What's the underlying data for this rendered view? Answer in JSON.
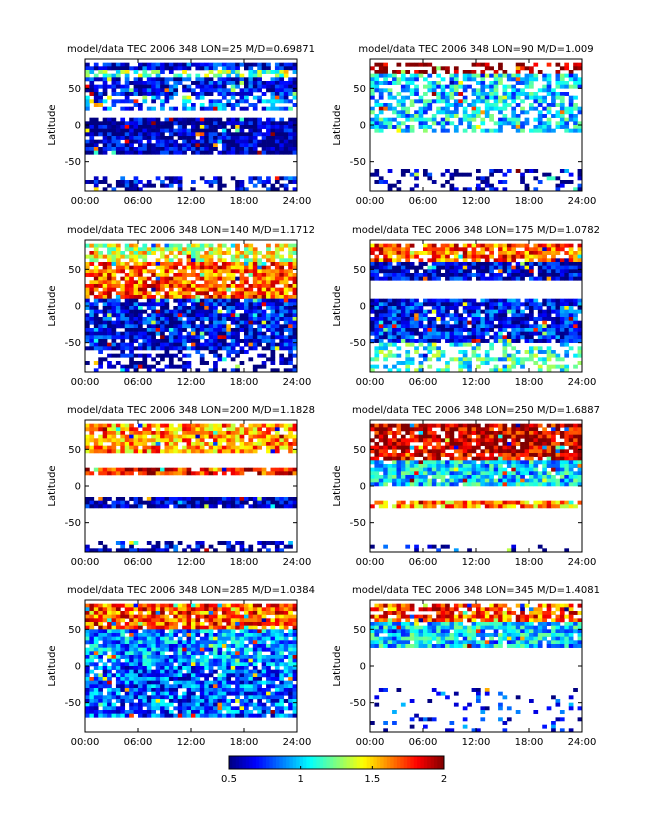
{
  "chart_data": {
    "type": "heatmap",
    "common": {
      "ylabel": "Latitude",
      "x_ticks": [
        "00:00",
        "06:00",
        "12:00",
        "18:00",
        "24:00"
      ],
      "y_ticks": [
        "50",
        "0",
        "-50"
      ],
      "xlim_hours": [
        0,
        24
      ],
      "ylim_deg": [
        -90,
        90
      ]
    },
    "colorbar": {
      "ticks": [
        "0.5",
        "1",
        "1.5",
        "2"
      ],
      "range": [
        0.5,
        2
      ],
      "colormap": "jet"
    },
    "panels": [
      {
        "title": "model/data TEC 2006 348 LON=25 M/D=0.69871",
        "bands": [
          {
            "lat": [
              40,
              85
            ],
            "v": 0.65,
            "d": 0.85
          },
          {
            "lat": [
              65,
              75
            ],
            "v": 1.2,
            "d": 0.6
          },
          {
            "lat": [
              20,
              40
            ],
            "v": 0.8,
            "d": 0.55
          },
          {
            "lat": [
              -40,
              10
            ],
            "v": 0.55,
            "d": 0.93
          },
          {
            "lat": [
              -90,
              -70
            ],
            "v": 0.6,
            "d": 0.45
          }
        ]
      },
      {
        "title": "model/data TEC 2006 348 LON=90 M/D=1.009",
        "bands": [
          {
            "lat": [
              70,
              85
            ],
            "v": 2.0,
            "d": 0.5
          },
          {
            "lat": [
              -10,
              70
            ],
            "v": 1.0,
            "d": 0.65
          },
          {
            "lat": [
              -90,
              -60
            ],
            "v": 0.55,
            "d": 0.35
          }
        ]
      },
      {
        "title": "model/data TEC 2006 348 LON=140 M/D=1.1712",
        "bands": [
          {
            "lat": [
              60,
              85
            ],
            "v": 1.4,
            "d": 0.7
          },
          {
            "lat": [
              10,
              60
            ],
            "v": 1.7,
            "d": 0.85
          },
          {
            "lat": [
              -60,
              10
            ],
            "v": 0.65,
            "d": 0.9
          },
          {
            "lat": [
              -90,
              -60
            ],
            "v": 0.55,
            "d": 0.4
          }
        ]
      },
      {
        "title": "model/data TEC 2006 348 LON=175 M/D=1.0782",
        "bands": [
          {
            "lat": [
              60,
              85
            ],
            "v": 1.7,
            "d": 0.85
          },
          {
            "lat": [
              35,
              60
            ],
            "v": 0.6,
            "d": 0.9
          },
          {
            "lat": [
              -50,
              10
            ],
            "v": 0.7,
            "d": 0.92
          },
          {
            "lat": [
              -90,
              -50
            ],
            "v": 1.1,
            "d": 0.45
          }
        ]
      },
      {
        "title": "model/data TEC 2006 348 LON=200 M/D=1.1828",
        "bands": [
          {
            "lat": [
              45,
              85
            ],
            "v": 1.6,
            "d": 0.85
          },
          {
            "lat": [
              15,
              25
            ],
            "v": 1.8,
            "d": 0.9
          },
          {
            "lat": [
              -30,
              -15
            ],
            "v": 0.55,
            "d": 0.9
          },
          {
            "lat": [
              -90,
              -75
            ],
            "v": 0.6,
            "d": 0.45
          }
        ]
      },
      {
        "title": "model/data TEC 2006 348 LON=250 M/D=1.6887",
        "bands": [
          {
            "lat": [
              35,
              85
            ],
            "v": 1.9,
            "d": 0.85
          },
          {
            "lat": [
              0,
              35
            ],
            "v": 1.0,
            "d": 0.95
          },
          {
            "lat": [
              -30,
              -20
            ],
            "v": 1.6,
            "d": 0.9
          },
          {
            "lat": [
              -90,
              -80
            ],
            "v": 0.6,
            "d": 0.2
          }
        ]
      },
      {
        "title": "model/data TEC 2006 348 LON=285 M/D=1.0384",
        "bands": [
          {
            "lat": [
              50,
              85
            ],
            "v": 1.7,
            "d": 0.9
          },
          {
            "lat": [
              0,
              50
            ],
            "v": 0.9,
            "d": 0.9
          },
          {
            "lat": [
              -70,
              0
            ],
            "v": 0.8,
            "d": 0.9
          }
        ]
      },
      {
        "title": "model/data TEC 2006 348 LON=345 M/D=1.4081",
        "bands": [
          {
            "lat": [
              60,
              85
            ],
            "v": 1.7,
            "d": 0.75
          },
          {
            "lat": [
              25,
              60
            ],
            "v": 1.0,
            "d": 0.92
          },
          {
            "lat": [
              -90,
              -30
            ],
            "v": 0.7,
            "d": 0.15
          }
        ]
      }
    ]
  }
}
